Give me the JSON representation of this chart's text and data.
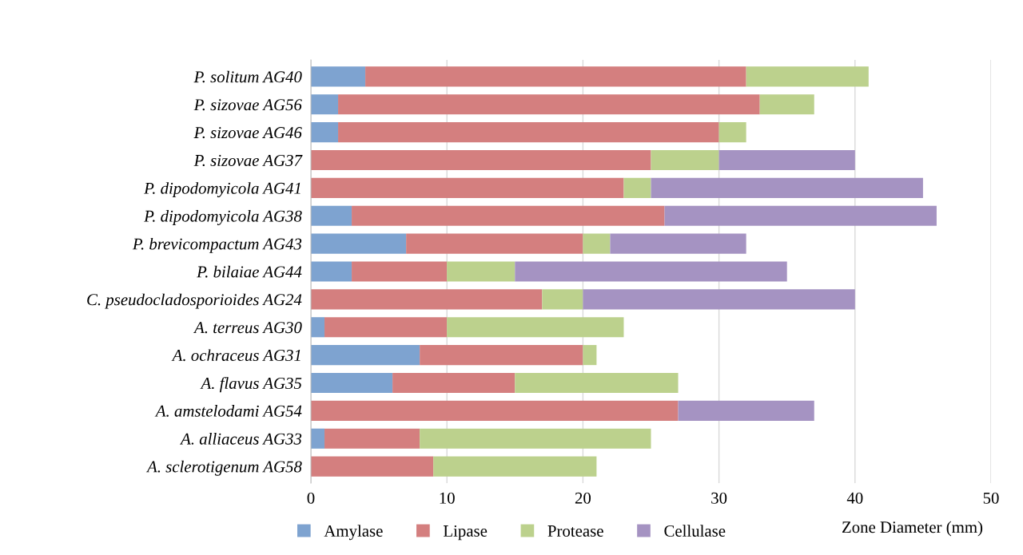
{
  "chart_data": {
    "type": "bar",
    "orientation": "horizontal",
    "stacked": true,
    "xlabel": "Zone Diameter (mm)",
    "categories": [
      "P. solitum AG40",
      "P. sizovae AG56",
      "P. sizovae AG46",
      "P. sizovae AG37",
      "P. dipodomyicola AG41",
      "P. dipodomyicola AG38",
      "P. brevicompactum AG43",
      "P. bilaiae AG44",
      "C. pseudocladosporioides AG24",
      "A. terreus AG30",
      "A. ochraceus AG31",
      "A. flavus AG35",
      "A. amstelodami AG54",
      "A. alliaceus AG33",
      "A. sclerotigenum AG58"
    ],
    "series": [
      {
        "name": "Amylase",
        "color": "#7ea3d0",
        "values": [
          4,
          2,
          2,
          null,
          null,
          3,
          7,
          3,
          null,
          1,
          8,
          6,
          null,
          1,
          null
        ]
      },
      {
        "name": "Lipase",
        "color": "#d47f7f",
        "values": [
          28,
          31,
          28,
          25,
          23,
          23,
          13,
          7,
          17,
          9,
          12,
          9,
          27,
          7,
          9
        ]
      },
      {
        "name": "Protease",
        "color": "#bcd18d",
        "values": [
          9,
          4,
          2,
          5,
          2,
          null,
          2,
          5,
          3,
          13,
          1,
          12,
          null,
          17,
          12
        ]
      },
      {
        "name": "Cellulase",
        "color": "#a593c2",
        "values": [
          null,
          null,
          null,
          10,
          20,
          20,
          10,
          20,
          20,
          null,
          null,
          null,
          10,
          null,
          null
        ]
      }
    ],
    "xlim": [
      0,
      50
    ],
    "xticks": [
      0,
      10,
      20,
      30,
      40,
      50
    ],
    "grid": "x",
    "legend": "bottom"
  }
}
